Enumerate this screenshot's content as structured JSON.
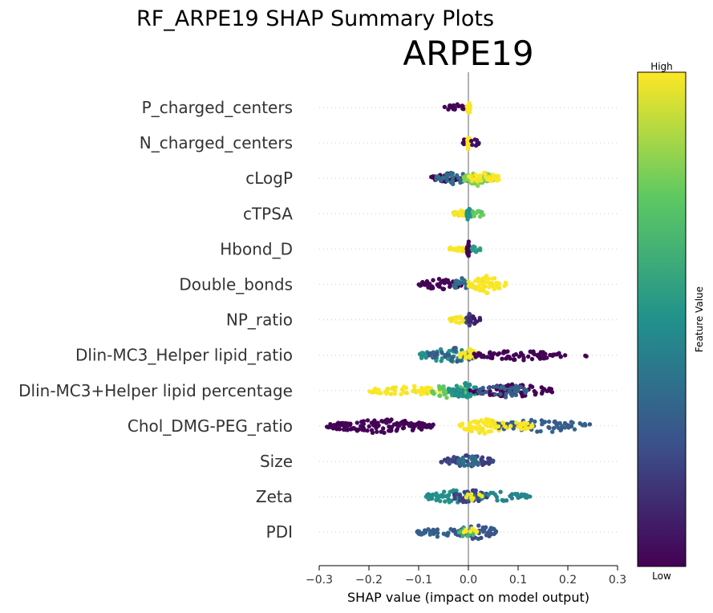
{
  "figure_title": "RF_ARPE19 SHAP Summary Plots",
  "chart_data": {
    "type": "scatter",
    "subtype": "shap-beeswarm",
    "title": "ARPE19",
    "xlabel": "SHAP value (impact on model output)",
    "ylabel": "",
    "xlim": [
      -0.3,
      0.3
    ],
    "x_ticks": [
      -0.3,
      -0.2,
      -0.1,
      0.0,
      0.1,
      0.2,
      0.3
    ],
    "x_tick_labels": [
      "−0.3",
      "−0.2",
      "−0.1",
      "0.0",
      "0.1",
      "0.2",
      "0.3"
    ],
    "zero_line": true,
    "grid": false,
    "colorbar": {
      "label": "Feature Value",
      "high_label": "High",
      "low_label": "Low",
      "colormap": "viridis",
      "colors": [
        "#440154",
        "#3b528b",
        "#21918c",
        "#5ec962",
        "#fde725"
      ]
    },
    "features": [
      {
        "name": "P_charged_centers",
        "segments": [
          {
            "x0": -0.048,
            "x1": -0.004,
            "fv": 0.0,
            "n": 24,
            "spread": 0.5
          },
          {
            "x0": -0.003,
            "x1": 0.004,
            "fv": 1.0,
            "n": 22,
            "spread": 0.9
          }
        ]
      },
      {
        "name": "N_charged_centers",
        "segments": [
          {
            "x0": -0.012,
            "x1": -0.002,
            "fv": 0.0,
            "n": 8,
            "spread": 0.5
          },
          {
            "x0": -0.003,
            "x1": 0.004,
            "fv": 1.0,
            "n": 22,
            "spread": 0.9
          },
          {
            "x0": 0.002,
            "x1": 0.022,
            "fv": 0.05,
            "n": 8,
            "spread": 0.5
          }
        ]
      },
      {
        "name": "cLogP",
        "segments": [
          {
            "x0": -0.075,
            "x1": -0.005,
            "fv": 0.0,
            "n": 40,
            "spread": 0.6
          },
          {
            "x0": -0.065,
            "x1": 0.005,
            "fv": 0.35,
            "n": 35,
            "spread": 0.8
          },
          {
            "x0": -0.01,
            "x1": 0.05,
            "fv": 0.8,
            "n": 45,
            "spread": 0.9
          },
          {
            "x0": 0.0,
            "x1": 0.065,
            "fv": 1.0,
            "n": 35,
            "spread": 0.7
          }
        ]
      },
      {
        "name": "cTPSA",
        "segments": [
          {
            "x0": -0.03,
            "x1": 0.0,
            "fv": 1.0,
            "n": 25,
            "spread": 0.4
          },
          {
            "x0": -0.005,
            "x1": 0.032,
            "fv": 0.75,
            "n": 25,
            "spread": 0.6
          },
          {
            "x0": -0.003,
            "x1": 0.003,
            "fv": 0.5,
            "n": 14,
            "spread": 1.0
          }
        ]
      },
      {
        "name": "Hbond_D",
        "segments": [
          {
            "x0": -0.04,
            "x1": -0.002,
            "fv": 1.0,
            "n": 22,
            "spread": 0.4
          },
          {
            "x0": -0.003,
            "x1": 0.003,
            "fv": 0.0,
            "n": 26,
            "spread": 1.0
          },
          {
            "x0": 0.002,
            "x1": 0.025,
            "fv": 0.55,
            "n": 10,
            "spread": 0.4
          }
        ]
      },
      {
        "name": "Double_bonds",
        "segments": [
          {
            "x0": -0.1,
            "x1": -0.01,
            "fv": 0.0,
            "n": 55,
            "spread": 0.7
          },
          {
            "x0": -0.03,
            "x1": 0.0,
            "fv": 0.35,
            "n": 20,
            "spread": 0.8
          },
          {
            "x0": 0.0,
            "x1": 0.075,
            "fv": 1.0,
            "n": 65,
            "spread": 1.0
          }
        ]
      },
      {
        "name": "NP_ratio",
        "segments": [
          {
            "x0": -0.04,
            "x1": 0.0,
            "fv": 1.0,
            "n": 24,
            "spread": 0.4
          },
          {
            "x0": -0.005,
            "x1": 0.005,
            "fv": 0.2,
            "n": 18,
            "spread": 1.0
          },
          {
            "x0": 0.0,
            "x1": 0.028,
            "fv": 0.1,
            "n": 14,
            "spread": 0.5
          }
        ]
      },
      {
        "name": "Dlin-MC3_Helper lipid_ratio",
        "segments": [
          {
            "x0": -0.1,
            "x1": 0.02,
            "fv": 0.5,
            "n": 60,
            "spread": 0.9
          },
          {
            "x0": -0.08,
            "x1": 0.02,
            "fv": 0.3,
            "n": 40,
            "spread": 0.9
          },
          {
            "x0": -0.02,
            "x1": 0.02,
            "fv": 1.0,
            "n": 20,
            "spread": 0.8
          },
          {
            "x0": 0.01,
            "x1": 0.195,
            "fv": 0.0,
            "n": 70,
            "spread": 0.6
          },
          {
            "x0": 0.235,
            "x1": 0.24,
            "fv": 0.0,
            "n": 2,
            "spread": 0.2
          }
        ]
      },
      {
        "name": "Dlin-MC3+Helper lipid percentage",
        "segments": [
          {
            "x0": -0.2,
            "x1": -0.05,
            "fv": 1.0,
            "n": 70,
            "spread": 0.6
          },
          {
            "x0": -0.08,
            "x1": 0.0,
            "fv": 0.75,
            "n": 40,
            "spread": 0.9
          },
          {
            "x0": -0.04,
            "x1": 0.02,
            "fv": 0.5,
            "n": 50,
            "spread": 1.0
          },
          {
            "x0": 0.0,
            "x1": 0.17,
            "fv": 0.0,
            "n": 70,
            "spread": 0.8
          },
          {
            "x0": 0.02,
            "x1": 0.12,
            "fv": 0.3,
            "n": 40,
            "spread": 0.9
          }
        ]
      },
      {
        "name": "Chol_DMG-PEG_ratio",
        "segments": [
          {
            "x0": -0.285,
            "x1": -0.07,
            "fv": 0.0,
            "n": 140,
            "spread": 0.85
          },
          {
            "x0": -0.02,
            "x1": 0.08,
            "fv": 1.0,
            "n": 70,
            "spread": 0.9
          },
          {
            "x0": 0.05,
            "x1": 0.245,
            "fv": 0.3,
            "n": 70,
            "spread": 0.8
          },
          {
            "x0": 0.05,
            "x1": 0.13,
            "fv": 1.0,
            "n": 25,
            "spread": 0.6
          }
        ]
      },
      {
        "name": "Size",
        "segments": [
          {
            "x0": -0.055,
            "x1": 0.05,
            "fv": 0.2,
            "n": 60,
            "spread": 0.8
          },
          {
            "x0": -0.02,
            "x1": 0.02,
            "fv": 0.35,
            "n": 25,
            "spread": 0.9
          }
        ]
      },
      {
        "name": "Zeta",
        "segments": [
          {
            "x0": -0.085,
            "x1": 0.03,
            "fv": 0.5,
            "n": 70,
            "spread": 0.8
          },
          {
            "x0": -0.03,
            "x1": 0.04,
            "fv": 0.2,
            "n": 40,
            "spread": 0.9
          },
          {
            "x0": 0.0,
            "x1": 0.125,
            "fv": 0.45,
            "n": 40,
            "spread": 0.6
          },
          {
            "x0": -0.01,
            "x1": 0.03,
            "fv": 1.0,
            "n": 8,
            "spread": 0.5
          }
        ]
      },
      {
        "name": "PDI",
        "segments": [
          {
            "x0": -0.105,
            "x1": -0.01,
            "fv": 0.3,
            "n": 40,
            "spread": 0.6
          },
          {
            "x0": -0.03,
            "x1": 0.06,
            "fv": 0.25,
            "n": 50,
            "spread": 0.9
          },
          {
            "x0": -0.02,
            "x1": 0.02,
            "fv": 0.65,
            "n": 15,
            "spread": 0.8
          },
          {
            "x0": -0.01,
            "x1": 0.02,
            "fv": 1.0,
            "n": 8,
            "spread": 0.5
          }
        ]
      }
    ]
  }
}
